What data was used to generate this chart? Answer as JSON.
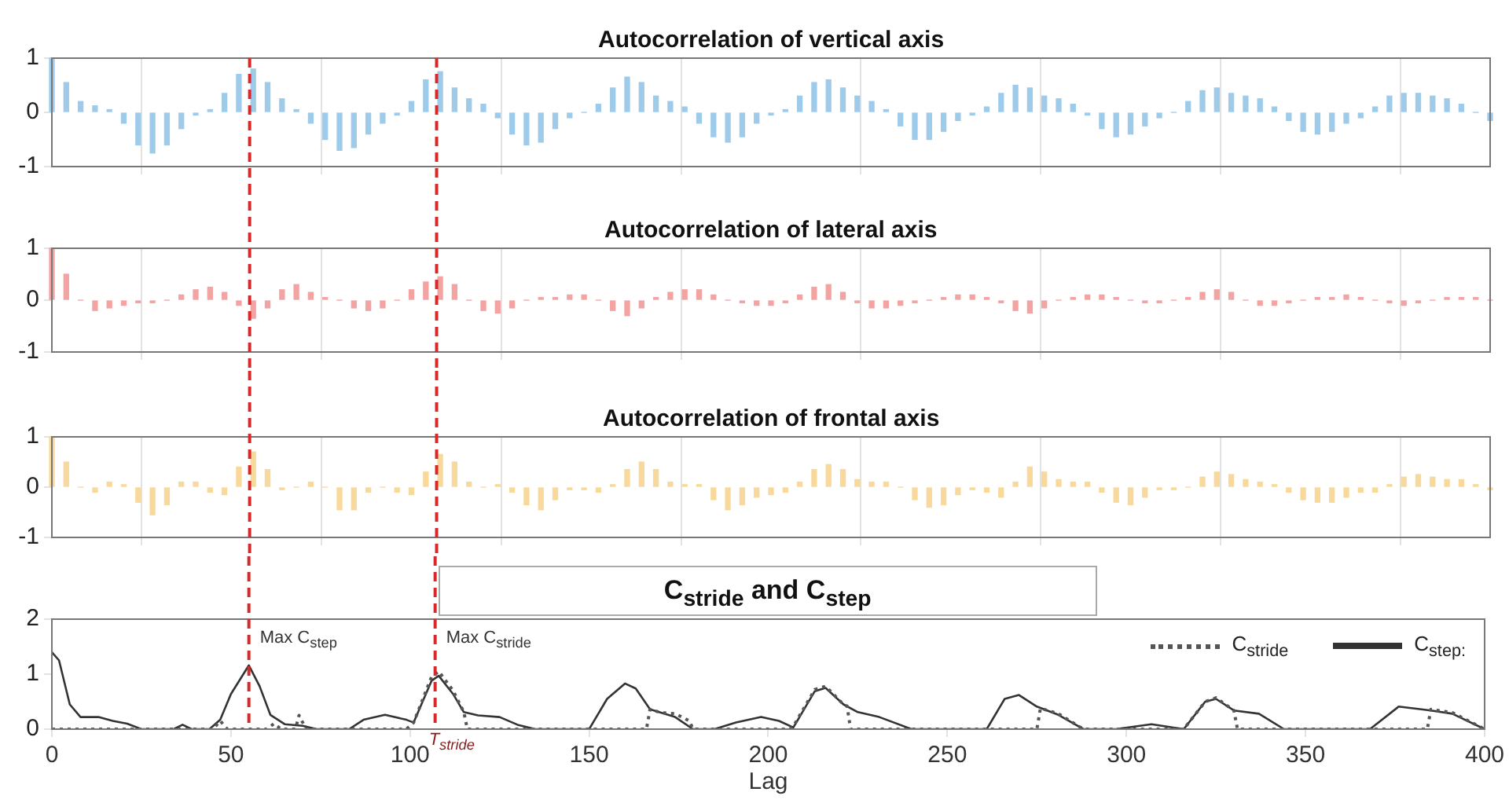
{
  "chart_data": [
    {
      "type": "bar",
      "title": "Autocorrelation of vertical axis",
      "color": "#9fcbeb",
      "x": [
        0,
        4,
        8,
        12,
        16,
        20,
        24,
        28,
        32,
        36,
        40,
        44,
        48,
        52,
        56,
        60,
        64,
        68,
        72,
        76,
        80,
        84,
        88,
        92,
        96,
        100,
        104,
        108,
        112,
        116,
        120,
        124,
        128,
        132,
        136,
        140,
        144,
        148,
        152,
        156,
        160,
        164,
        168,
        172,
        176,
        180,
        184,
        188,
        192,
        196,
        200,
        204,
        208,
        212,
        216,
        220,
        224,
        228,
        232,
        236,
        240,
        244,
        248,
        252,
        256,
        260,
        264,
        268,
        272,
        276,
        280,
        284,
        288,
        292,
        296,
        300,
        304,
        308,
        312,
        316,
        320,
        324,
        328,
        332,
        336,
        340,
        344,
        348,
        352,
        356,
        360,
        364,
        368,
        372,
        376,
        380,
        384,
        388,
        392,
        396,
        400
      ],
      "values": [
        1.0,
        0.55,
        0.2,
        0.12,
        0.05,
        -0.2,
        -0.6,
        -0.75,
        -0.6,
        -0.3,
        -0.05,
        0.05,
        0.35,
        0.7,
        0.8,
        0.55,
        0.25,
        0.05,
        -0.2,
        -0.5,
        -0.7,
        -0.65,
        -0.4,
        -0.2,
        -0.05,
        0.2,
        0.6,
        0.75,
        0.45,
        0.25,
        0.15,
        -0.1,
        -0.4,
        -0.6,
        -0.55,
        -0.3,
        -0.1,
        0.0,
        0.15,
        0.45,
        0.65,
        0.55,
        0.3,
        0.2,
        0.1,
        -0.2,
        -0.45,
        -0.55,
        -0.45,
        -0.2,
        -0.05,
        0.05,
        0.3,
        0.55,
        0.6,
        0.45,
        0.3,
        0.2,
        0.05,
        -0.25,
        -0.5,
        -0.5,
        -0.35,
        -0.15,
        -0.05,
        0.1,
        0.35,
        0.5,
        0.45,
        0.3,
        0.25,
        0.15,
        -0.05,
        -0.3,
        -0.45,
        -0.4,
        -0.25,
        -0.1,
        0.0,
        0.2,
        0.4,
        0.45,
        0.35,
        0.3,
        0.25,
        0.1,
        -0.15,
        -0.35,
        -0.4,
        -0.35,
        -0.2,
        -0.1,
        0.1,
        0.3,
        0.35,
        0.35,
        0.3,
        0.25,
        0.15,
        0.0,
        -0.15
      ],
      "xlim": [
        0,
        400
      ],
      "xticks": [
        0,
        50,
        100,
        150,
        200,
        250,
        300,
        350,
        400
      ],
      "ylim": [
        -1,
        1
      ],
      "yticks": [
        -1,
        0,
        1
      ],
      "grid": "x",
      "tick_labels": "y",
      "ref_lines": [
        {
          "axis": "x",
          "value": 55,
          "color": "#d42a2a",
          "line_style": "dashed"
        },
        {
          "axis": "x",
          "value": 107,
          "color": "#d42a2a",
          "line_style": "dashed"
        }
      ]
    },
    {
      "type": "bar",
      "title": "Autocorrelation of lateral axis",
      "color": "#f4a3a3",
      "x": [
        0,
        4,
        8,
        12,
        16,
        20,
        24,
        28,
        32,
        36,
        40,
        44,
        48,
        52,
        56,
        60,
        64,
        68,
        72,
        76,
        80,
        84,
        88,
        92,
        96,
        100,
        104,
        108,
        112,
        116,
        120,
        124,
        128,
        132,
        136,
        140,
        144,
        148,
        152,
        156,
        160,
        164,
        168,
        172,
        176,
        180,
        184,
        188,
        192,
        196,
        200,
        204,
        208,
        212,
        216,
        220,
        224,
        228,
        232,
        236,
        240,
        244,
        248,
        252,
        256,
        260,
        264,
        268,
        272,
        276,
        280,
        284,
        288,
        292,
        296,
        300,
        304,
        308,
        312,
        316,
        320,
        324,
        328,
        332,
        336,
        340,
        344,
        348,
        352,
        356,
        360,
        364,
        368,
        372,
        376,
        380,
        384,
        388,
        392,
        396,
        400
      ],
      "values": [
        1.0,
        0.5,
        0.0,
        -0.2,
        -0.15,
        -0.1,
        -0.05,
        -0.05,
        0.0,
        0.1,
        0.2,
        0.25,
        0.15,
        -0.1,
        -0.35,
        -0.15,
        0.2,
        0.3,
        0.15,
        0.05,
        0.0,
        -0.15,
        -0.2,
        -0.15,
        0.0,
        0.2,
        0.35,
        0.45,
        0.3,
        0.0,
        -0.2,
        -0.25,
        -0.15,
        0.0,
        0.05,
        0.05,
        0.1,
        0.1,
        0.0,
        -0.2,
        -0.3,
        -0.15,
        0.05,
        0.15,
        0.2,
        0.2,
        0.1,
        0.0,
        -0.05,
        -0.1,
        -0.1,
        -0.05,
        0.1,
        0.25,
        0.3,
        0.15,
        -0.05,
        -0.15,
        -0.15,
        -0.1,
        -0.05,
        0.0,
        0.05,
        0.1,
        0.1,
        0.05,
        -0.05,
        -0.2,
        -0.25,
        -0.15,
        0.0,
        0.05,
        0.1,
        0.1,
        0.05,
        0.0,
        -0.05,
        -0.05,
        0.0,
        0.05,
        0.15,
        0.2,
        0.15,
        0.0,
        -0.1,
        -0.1,
        -0.05,
        0.0,
        0.05,
        0.05,
        0.1,
        0.05,
        0.0,
        -0.05,
        -0.1,
        -0.05,
        0.0,
        0.05,
        0.05,
        0.05,
        0.0
      ],
      "xlim": [
        0,
        400
      ],
      "xticks": [
        0,
        50,
        100,
        150,
        200,
        250,
        300,
        350,
        400
      ],
      "ylim": [
        -1,
        1
      ],
      "yticks": [
        -1,
        0,
        1
      ],
      "grid": "x",
      "tick_labels": "y",
      "ref_lines": [
        {
          "axis": "x",
          "value": 55,
          "color": "#d42a2a",
          "line_style": "dashed"
        },
        {
          "axis": "x",
          "value": 107,
          "color": "#d42a2a",
          "line_style": "dashed"
        }
      ]
    },
    {
      "type": "bar",
      "title": "Autocorrelation of frontal axis",
      "color": "#f8d99b",
      "x": [
        0,
        4,
        8,
        12,
        16,
        20,
        24,
        28,
        32,
        36,
        40,
        44,
        48,
        52,
        56,
        60,
        64,
        68,
        72,
        76,
        80,
        84,
        88,
        92,
        96,
        100,
        104,
        108,
        112,
        116,
        120,
        124,
        128,
        132,
        136,
        140,
        144,
        148,
        152,
        156,
        160,
        164,
        168,
        172,
        176,
        180,
        184,
        188,
        192,
        196,
        200,
        204,
        208,
        212,
        216,
        220,
        224,
        228,
        232,
        236,
        240,
        244,
        248,
        252,
        256,
        260,
        264,
        268,
        272,
        276,
        280,
        284,
        288,
        292,
        296,
        300,
        304,
        308,
        312,
        316,
        320,
        324,
        328,
        332,
        336,
        340,
        344,
        348,
        352,
        356,
        360,
        364,
        368,
        372,
        376,
        380,
        384,
        388,
        392,
        396,
        400
      ],
      "values": [
        1.0,
        0.5,
        0.0,
        -0.1,
        0.1,
        0.05,
        -0.3,
        -0.55,
        -0.35,
        0.1,
        0.1,
        -0.1,
        -0.15,
        0.4,
        0.7,
        0.35,
        -0.05,
        0.0,
        0.1,
        0.0,
        -0.45,
        -0.45,
        -0.1,
        0.0,
        -0.1,
        -0.15,
        0.3,
        0.65,
        0.5,
        0.1,
        0.0,
        0.05,
        -0.1,
        -0.35,
        -0.45,
        -0.25,
        -0.05,
        -0.05,
        -0.1,
        0.05,
        0.35,
        0.5,
        0.35,
        0.1,
        0.05,
        0.05,
        -0.25,
        -0.45,
        -0.35,
        -0.2,
        -0.15,
        -0.1,
        0.1,
        0.35,
        0.45,
        0.35,
        0.15,
        0.1,
        0.1,
        0.0,
        -0.25,
        -0.4,
        -0.35,
        -0.15,
        -0.05,
        -0.1,
        -0.2,
        0.1,
        0.4,
        0.3,
        0.15,
        0.1,
        0.1,
        -0.1,
        -0.3,
        -0.35,
        -0.2,
        -0.05,
        -0.05,
        0.0,
        0.2,
        0.3,
        0.25,
        0.15,
        0.1,
        0.05,
        -0.1,
        -0.25,
        -0.3,
        -0.3,
        -0.2,
        -0.1,
        -0.1,
        0.05,
        0.2,
        0.25,
        0.2,
        0.15,
        0.15,
        0.05,
        -0.05
      ],
      "xlim": [
        0,
        400
      ],
      "xticks": [
        0,
        50,
        100,
        150,
        200,
        250,
        300,
        350,
        400
      ],
      "ylim": [
        -1,
        1
      ],
      "yticks": [
        -1,
        0,
        1
      ],
      "grid": "x",
      "tick_labels": "y",
      "ref_lines": [
        {
          "axis": "x",
          "value": 55,
          "color": "#d42a2a",
          "line_style": "dashed"
        },
        {
          "axis": "x",
          "value": 107,
          "color": "#d42a2a",
          "line_style": "dashed"
        }
      ]
    },
    {
      "type": "line",
      "title": "C$_{stride}$ and C$_{step}$",
      "xlabel": "Lag",
      "marker": "none",
      "legend": "top right",
      "grid": false,
      "series": [
        {
          "name": "C$_{stride}$",
          "color": "#555555",
          "line_style": "dotted",
          "x": [
            0,
            45,
            47,
            49,
            60,
            62,
            64,
            68,
            69,
            71,
            99,
            101,
            106,
            108,
            112,
            115,
            116,
            166,
            167,
            170,
            174,
            178,
            179,
            206,
            207,
            213,
            216,
            221,
            222,
            223,
            275,
            276,
            281,
            288,
            315,
            316,
            322,
            325,
            330,
            331,
            384,
            385,
            391,
            400
          ],
          "values": [
            0,
            0,
            0.15,
            0,
            0,
            0.1,
            0,
            0,
            0.25,
            0,
            0,
            0.12,
            0.95,
            1.05,
            0.7,
            0.31,
            0,
            0,
            0.36,
            0.3,
            0.28,
            0.15,
            0,
            0,
            0.05,
            0.72,
            0.78,
            0.45,
            0.42,
            0,
            0,
            0.38,
            0.28,
            0,
            0,
            0,
            0.5,
            0.57,
            0.34,
            0,
            0,
            0.36,
            0.3,
            0
          ]
        },
        {
          "name": "C$_{step:}$",
          "color": "#333333",
          "line_style": "solid",
          "x": [
            0,
            2,
            5,
            8,
            13,
            17,
            21,
            25,
            34,
            36.5,
            39,
            44,
            47,
            50,
            55,
            58,
            61,
            65,
            70,
            74,
            83,
            87,
            93,
            99,
            101,
            106,
            108,
            112,
            115,
            119,
            125,
            130,
            135,
            150,
            155,
            160,
            163,
            167,
            174,
            179,
            185,
            191,
            198,
            203,
            207,
            213,
            216,
            221,
            225,
            231,
            240,
            261,
            266,
            270,
            275,
            281,
            288,
            297,
            307,
            316,
            322,
            325,
            330,
            337,
            344,
            368,
            376,
            385,
            391,
            400
          ],
          "values": [
            1.4,
            1.25,
            0.45,
            0.22,
            0.22,
            0.15,
            0.1,
            0,
            0,
            0.08,
            0,
            0,
            0.17,
            0.64,
            1.16,
            0.78,
            0.26,
            0.09,
            0.06,
            0,
            0,
            0.17,
            0.26,
            0.17,
            0.12,
            0.88,
            0.97,
            0.64,
            0.31,
            0.25,
            0.22,
            0.08,
            0,
            0,
            0.55,
            0.83,
            0.74,
            0.36,
            0.22,
            0,
            0,
            0.12,
            0.22,
            0.15,
            0.03,
            0.69,
            0.75,
            0.45,
            0.31,
            0.22,
            0,
            0,
            0.55,
            0.62,
            0.41,
            0.26,
            0,
            0,
            0.09,
            0,
            0.5,
            0.55,
            0.34,
            0.28,
            0,
            0,
            0.41,
            0.34,
            0.28,
            0
          ]
        }
      ],
      "xlim": [
        0,
        400
      ],
      "xticks": [
        0,
        50,
        100,
        150,
        200,
        250,
        300,
        350,
        400
      ],
      "ylim": [
        0,
        2
      ],
      "yticks": [
        0,
        1,
        2
      ],
      "ref_lines": [
        {
          "axis": "x",
          "value": 55,
          "label": "Max C$_{step}$",
          "color": "#d42a2a",
          "line_style": "dashed"
        },
        {
          "axis": "x",
          "value": 107,
          "label": "Max C$_{stride}$",
          "color": "#d42a2a",
          "line_style": "dashed"
        }
      ],
      "annotations": [
        {
          "text": "T$_{stride}$",
          "x": 107,
          "y": 0
        }
      ]
    }
  ]
}
